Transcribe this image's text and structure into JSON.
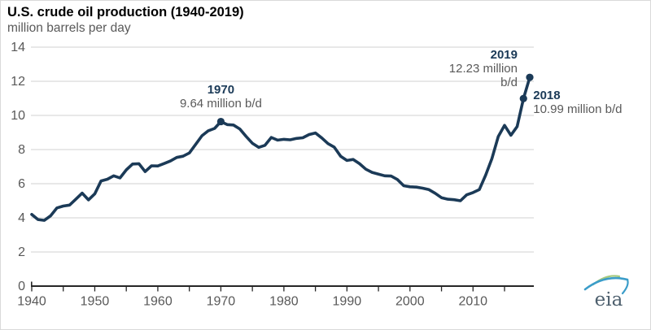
{
  "header": {
    "title": "U.S. crude oil production (1940-2019)",
    "subtitle": "million barrels per day"
  },
  "logo": {
    "text": "eia"
  },
  "colors": {
    "line": "#1b3a57",
    "marker": "#1b3a57",
    "annotation_year": "#1b3a57",
    "annotation_value": "#595959",
    "tick_label": "#595959",
    "gridline": "#d9d9d9",
    "axis": "#262626",
    "logo_text": "#4d5f6d",
    "logo_green_arc": "#a5c97d",
    "logo_blue_arc": "#3b9dc9"
  },
  "chart_data": {
    "type": "line",
    "title": "U.S. crude oil production (1940-2019)",
    "ylabel": "million barrels per day",
    "xlabel": "",
    "series_name": "U.S. crude oil production (million barrels per day)",
    "ylim": [
      0,
      14
    ],
    "yticks": [
      0,
      2,
      4,
      6,
      8,
      10,
      12,
      14
    ],
    "xtick_labels": [
      1940,
      1950,
      1960,
      1970,
      1980,
      1990,
      2000,
      2010
    ],
    "xtick_minor_step_years": 5,
    "grid": "horizontal",
    "legend": "none",
    "years": [
      1940,
      1941,
      1942,
      1943,
      1944,
      1945,
      1946,
      1947,
      1948,
      1949,
      1950,
      1951,
      1952,
      1953,
      1954,
      1955,
      1956,
      1957,
      1958,
      1959,
      1960,
      1961,
      1962,
      1963,
      1964,
      1965,
      1966,
      1967,
      1968,
      1969,
      1970,
      1971,
      1972,
      1973,
      1974,
      1975,
      1976,
      1977,
      1978,
      1979,
      1980,
      1981,
      1982,
      1983,
      1984,
      1985,
      1986,
      1987,
      1988,
      1989,
      1990,
      1991,
      1992,
      1993,
      1994,
      1995,
      1996,
      1997,
      1998,
      1999,
      2000,
      2001,
      2002,
      2003,
      2004,
      2005,
      2006,
      2007,
      2008,
      2009,
      2010,
      2011,
      2012,
      2013,
      2014,
      2015,
      2016,
      2017,
      2018,
      2019
    ],
    "values": [
      4.2,
      3.9,
      3.85,
      4.12,
      4.58,
      4.69,
      4.75,
      5.09,
      5.45,
      5.05,
      5.41,
      6.16,
      6.26,
      6.46,
      6.34,
      6.81,
      7.15,
      7.17,
      6.71,
      7.05,
      7.04,
      7.18,
      7.33,
      7.54,
      7.61,
      7.8,
      8.3,
      8.81,
      9.1,
      9.24,
      9.64,
      9.46,
      9.44,
      9.21,
      8.77,
      8.37,
      8.13,
      8.25,
      8.71,
      8.55,
      8.6,
      8.57,
      8.65,
      8.69,
      8.88,
      8.97,
      8.68,
      8.35,
      8.14,
      7.61,
      7.36,
      7.42,
      7.17,
      6.85,
      6.66,
      6.56,
      6.46,
      6.45,
      6.25,
      5.88,
      5.82,
      5.8,
      5.74,
      5.65,
      5.44,
      5.18,
      5.09,
      5.06,
      5.0,
      5.35,
      5.48,
      5.65,
      6.5,
      7.47,
      8.76,
      9.42,
      8.84,
      9.35,
      10.99,
      12.23
    ],
    "marker_years": [
      1970,
      2018,
      2019
    ],
    "annotations": [
      {
        "year_label": "1970",
        "value_label": "9.64 million b/d",
        "year": 1970,
        "value": 9.64,
        "placement": "above"
      },
      {
        "year_label": "2019",
        "value_label": "12.23 million",
        "value_label2": "b/d",
        "year": 2019,
        "value": 12.23,
        "placement": "left"
      },
      {
        "year_label": "2018",
        "value_label": "10.99 million b/d",
        "year": 2018,
        "value": 10.99,
        "placement": "right"
      }
    ]
  }
}
